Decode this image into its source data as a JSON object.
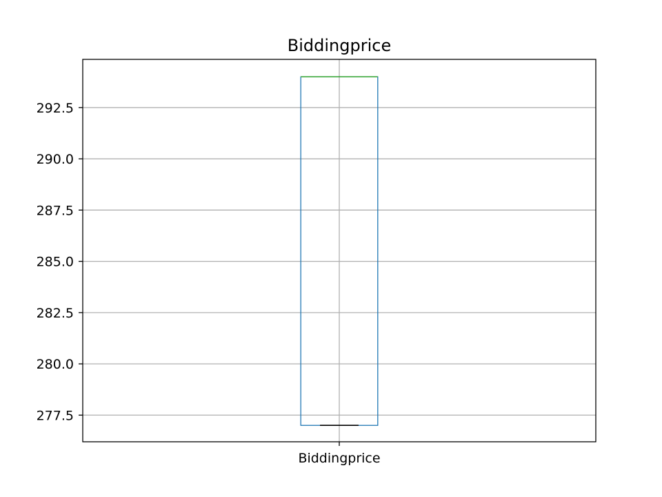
{
  "chart_data": {
    "type": "box",
    "title": "Biddingprice",
    "xlabel": "",
    "ylabel": "",
    "categories": [
      "Biddingprice"
    ],
    "boxes": [
      {
        "category": "Biddingprice",
        "whisker_low": 277.0,
        "q1": 277.0,
        "median": 277.0,
        "q3": 294.0,
        "whisker_high": 294.0
      }
    ],
    "ylim": [
      276.2,
      294.85
    ],
    "yticks": [
      "277.5",
      "280.0",
      "282.5",
      "285.0",
      "287.5",
      "290.0",
      "292.5"
    ],
    "grid": true,
    "colors": {
      "box": "#1f77b4",
      "median": "#000000",
      "whisker_cap": "#2ca02c",
      "grid": "#b0b0b0",
      "axes": "#000000"
    }
  }
}
